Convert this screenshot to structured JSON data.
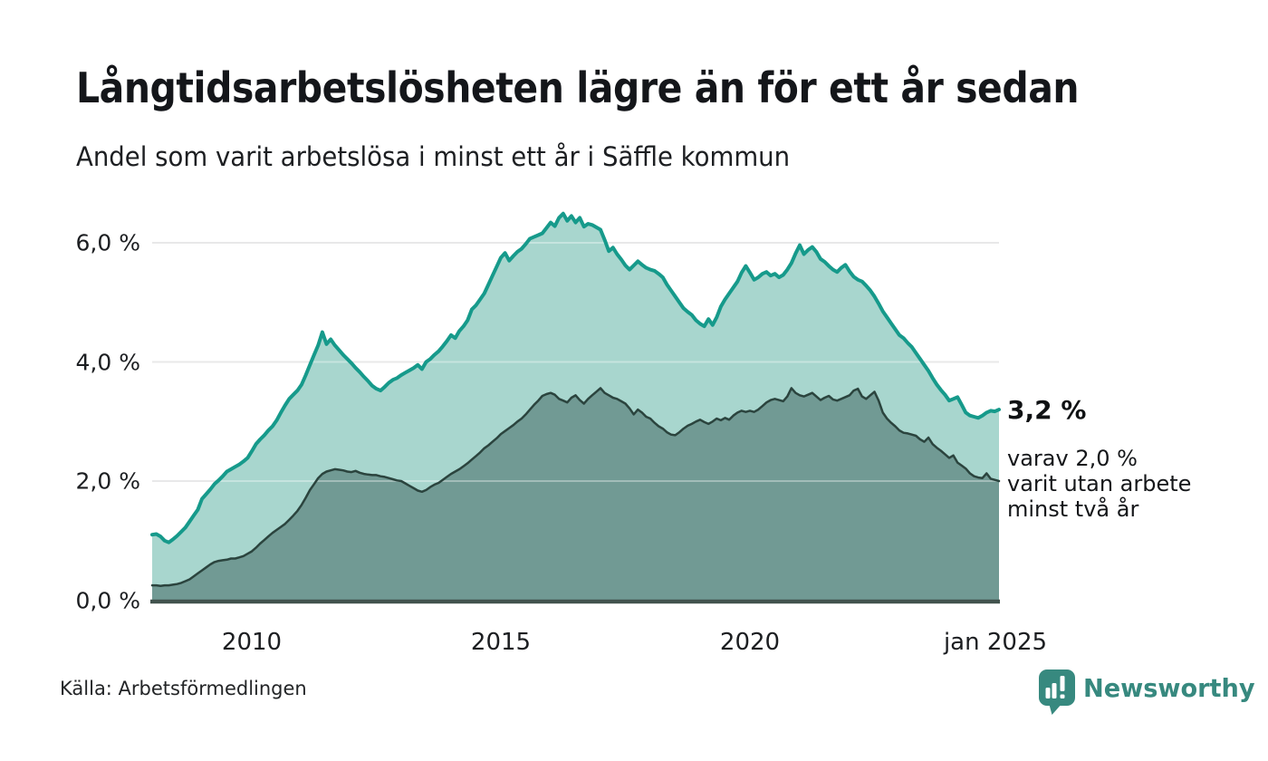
{
  "header": {
    "title": "Långtidsarbetslösheten lägre än för ett år sedan",
    "subtitle": "Andel som varit arbetslösa i minst ett år i Säffle kommun"
  },
  "annotation": {
    "value_label": "3,2 %",
    "detail_lines": [
      "varav 2,0 %",
      "varit utan arbete",
      "minst två år"
    ]
  },
  "footer": {
    "source": "Källa: Arbetsförmedlingen",
    "brand_name": "Newsworthy"
  },
  "colors": {
    "series1_line": "#169a8b",
    "series1_fill": "#a8d6ce",
    "series2_line": "#2b443e",
    "series2_fill": "#719a94",
    "gridline": "#dcdcdd",
    "axis_line": "#42534e",
    "brand": "#37897f",
    "text": "#15171a"
  },
  "chart_data": {
    "type": "area",
    "title": "Långtidsarbetslösheten lägre än för ett år sedan",
    "subtitle": "Andel som varit arbetslösa i minst ett år i Säffle kommun",
    "unit": "percent of workforce",
    "freq": "monthly",
    "start": "2008-01",
    "end": "2025-01",
    "ylim": [
      0,
      6.6
    ],
    "grid_values": [
      2,
      4,
      6
    ],
    "y_ticks": [
      {
        "label": "0,0 %",
        "value": 0
      },
      {
        "label": "2,0 %",
        "value": 2
      },
      {
        "label": "4,0 %",
        "value": 4
      },
      {
        "label": "6,0 %",
        "value": 6
      }
    ],
    "x_ticks": [
      {
        "label": "2010",
        "month_index": 24
      },
      {
        "label": "2015",
        "month_index": 84
      },
      {
        "label": "2020",
        "month_index": 144
      },
      {
        "label": "jan 2025",
        "month_index": 204
      }
    ],
    "series": [
      {
        "name": "Andel arbetslösa minst ett år",
        "end_label": "3,2 %",
        "values": [
          1.1,
          1.11,
          1.07,
          1.0,
          0.97,
          1.02,
          1.08,
          1.15,
          1.22,
          1.32,
          1.42,
          1.52,
          1.7,
          1.78,
          1.86,
          1.95,
          2.01,
          2.08,
          2.16,
          2.2,
          2.24,
          2.28,
          2.33,
          2.39,
          2.5,
          2.62,
          2.7,
          2.77,
          2.85,
          2.92,
          3.02,
          3.15,
          3.27,
          3.38,
          3.45,
          3.52,
          3.62,
          3.78,
          3.95,
          4.12,
          4.28,
          4.5,
          4.3,
          4.38,
          4.28,
          4.2,
          4.12,
          4.05,
          3.98,
          3.9,
          3.83,
          3.75,
          3.68,
          3.6,
          3.55,
          3.52,
          3.58,
          3.65,
          3.7,
          3.73,
          3.78,
          3.82,
          3.86,
          3.9,
          3.95,
          3.88,
          4.0,
          4.05,
          4.12,
          4.18,
          4.26,
          4.35,
          4.45,
          4.4,
          4.52,
          4.6,
          4.7,
          4.88,
          4.95,
          5.05,
          5.15,
          5.3,
          5.45,
          5.6,
          5.75,
          5.83,
          5.7,
          5.78,
          5.85,
          5.9,
          5.98,
          6.07,
          6.1,
          6.13,
          6.16,
          6.25,
          6.34,
          6.28,
          6.42,
          6.49,
          6.37,
          6.45,
          6.34,
          6.42,
          6.27,
          6.32,
          6.3,
          6.26,
          6.22,
          6.05,
          5.86,
          5.92,
          5.81,
          5.72,
          5.62,
          5.55,
          5.62,
          5.69,
          5.63,
          5.58,
          5.55,
          5.53,
          5.48,
          5.42,
          5.3,
          5.2,
          5.1,
          5.0,
          4.9,
          4.84,
          4.79,
          4.7,
          4.64,
          4.6,
          4.72,
          4.62,
          4.75,
          4.93,
          5.05,
          5.15,
          5.25,
          5.35,
          5.5,
          5.61,
          5.5,
          5.38,
          5.42,
          5.48,
          5.51,
          5.45,
          5.48,
          5.42,
          5.46,
          5.55,
          5.66,
          5.82,
          5.96,
          5.81,
          5.88,
          5.93,
          5.85,
          5.73,
          5.68,
          5.61,
          5.55,
          5.51,
          5.58,
          5.63,
          5.52,
          5.43,
          5.38,
          5.35,
          5.28,
          5.2,
          5.1,
          4.98,
          4.85,
          4.75,
          4.65,
          4.55,
          4.45,
          4.4,
          4.32,
          4.25,
          4.15,
          4.05,
          3.95,
          3.85,
          3.73,
          3.62,
          3.53,
          3.45,
          3.35,
          3.38,
          3.41,
          3.28,
          3.15,
          3.1,
          3.08,
          3.06,
          3.1,
          3.15,
          3.18,
          3.17,
          3.2
        ]
      },
      {
        "name": "varav arbetslösa minst två år",
        "end_label": "2,0 %",
        "values": [
          0.25,
          0.25,
          0.24,
          0.25,
          0.25,
          0.26,
          0.27,
          0.29,
          0.32,
          0.35,
          0.4,
          0.45,
          0.5,
          0.55,
          0.6,
          0.64,
          0.66,
          0.67,
          0.68,
          0.7,
          0.7,
          0.72,
          0.74,
          0.78,
          0.82,
          0.88,
          0.95,
          1.01,
          1.07,
          1.13,
          1.18,
          1.23,
          1.28,
          1.35,
          1.42,
          1.5,
          1.6,
          1.72,
          1.85,
          1.95,
          2.05,
          2.12,
          2.16,
          2.18,
          2.2,
          2.19,
          2.18,
          2.16,
          2.15,
          2.17,
          2.14,
          2.12,
          2.11,
          2.1,
          2.1,
          2.08,
          2.07,
          2.05,
          2.03,
          2.01,
          2.0,
          1.96,
          1.92,
          1.88,
          1.84,
          1.82,
          1.85,
          1.9,
          1.94,
          1.97,
          2.02,
          2.07,
          2.12,
          2.16,
          2.2,
          2.25,
          2.3,
          2.36,
          2.42,
          2.48,
          2.55,
          2.6,
          2.66,
          2.72,
          2.79,
          2.84,
          2.89,
          2.94,
          3.0,
          3.05,
          3.12,
          3.2,
          3.28,
          3.35,
          3.43,
          3.46,
          3.48,
          3.45,
          3.38,
          3.35,
          3.32,
          3.4,
          3.44,
          3.36,
          3.3,
          3.38,
          3.44,
          3.5,
          3.56,
          3.48,
          3.44,
          3.4,
          3.38,
          3.34,
          3.3,
          3.22,
          3.12,
          3.2,
          3.15,
          3.08,
          3.05,
          2.98,
          2.92,
          2.88,
          2.82,
          2.78,
          2.77,
          2.82,
          2.88,
          2.93,
          2.96,
          3.0,
          3.03,
          2.99,
          2.96,
          3.0,
          3.05,
          3.02,
          3.06,
          3.03,
          3.1,
          3.15,
          3.18,
          3.16,
          3.18,
          3.16,
          3.2,
          3.26,
          3.32,
          3.36,
          3.38,
          3.36,
          3.34,
          3.42,
          3.56,
          3.48,
          3.44,
          3.42,
          3.45,
          3.48,
          3.42,
          3.36,
          3.4,
          3.43,
          3.37,
          3.35,
          3.38,
          3.41,
          3.44,
          3.52,
          3.55,
          3.42,
          3.38,
          3.44,
          3.5,
          3.35,
          3.15,
          3.05,
          2.98,
          2.92,
          2.85,
          2.81,
          2.8,
          2.78,
          2.76,
          2.7,
          2.66,
          2.73,
          2.62,
          2.56,
          2.51,
          2.45,
          2.39,
          2.43,
          2.31,
          2.26,
          2.21,
          2.13,
          2.08,
          2.06,
          2.05,
          2.13,
          2.04,
          2.02,
          2.0
        ]
      }
    ]
  }
}
